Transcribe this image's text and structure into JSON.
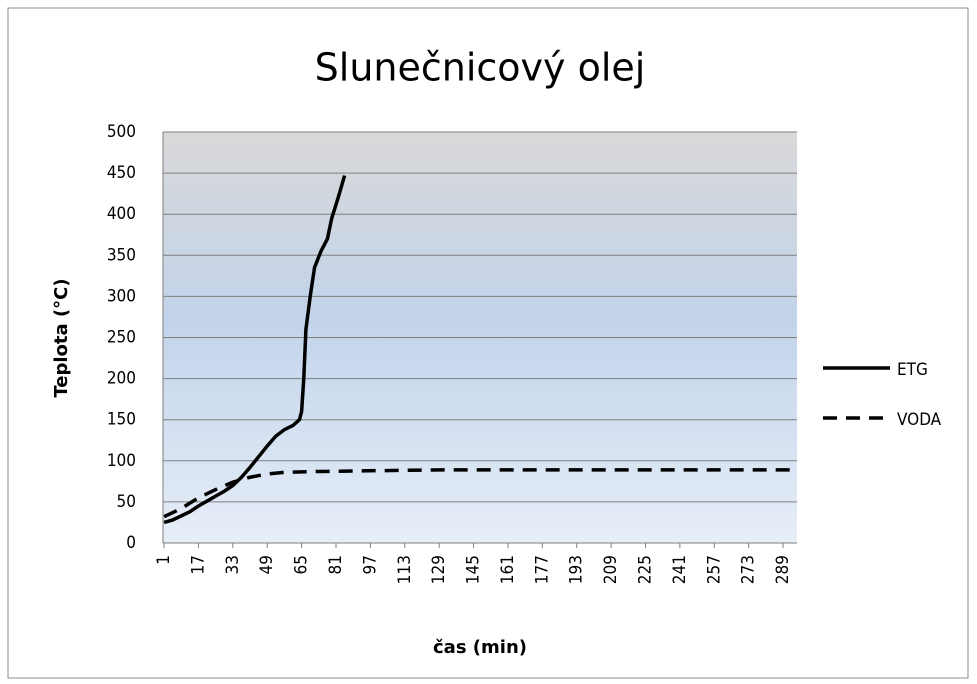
{
  "chart_data": {
    "type": "line",
    "title": "Slunečnicový olej",
    "x_label": "čas (min)",
    "y_label": "Teplota (°C)",
    "xlim": [
      0.5,
      295.5
    ],
    "xticks": [
      1,
      17,
      33,
      49,
      65,
      81,
      97,
      113,
      129,
      145,
      161,
      177,
      193,
      209,
      225,
      241,
      257,
      273,
      289
    ],
    "ylim": [
      0,
      500
    ],
    "yticks": [
      0,
      50,
      100,
      150,
      200,
      250,
      300,
      350,
      400,
      450,
      500
    ],
    "grid": true,
    "legend": "right",
    "series": [
      {
        "name": "ETG",
        "color": "#000000",
        "dash": false,
        "x": [
          1,
          5,
          9,
          13,
          17,
          21,
          25,
          29,
          33,
          37,
          41,
          45,
          49,
          53,
          57,
          61,
          64,
          65,
          66,
          67,
          69,
          71,
          74,
          77,
          79,
          82,
          85
        ],
        "values": [
          25,
          28,
          33,
          38,
          45,
          51,
          57,
          63,
          70,
          80,
          92,
          105,
          118,
          130,
          138,
          143,
          150,
          160,
          200,
          260,
          300,
          335,
          355,
          370,
          395,
          420,
          447
        ]
      },
      {
        "name": "VODA",
        "color": "#000000",
        "dash": true,
        "x": [
          1,
          9,
          17,
          25,
          33,
          41,
          49,
          57,
          73,
          100,
          130,
          160,
          200,
          250,
          295
        ],
        "values": [
          32,
          42,
          55,
          65,
          74,
          80,
          84,
          86,
          87,
          88,
          89,
          89,
          89,
          89,
          89
        ]
      }
    ]
  }
}
